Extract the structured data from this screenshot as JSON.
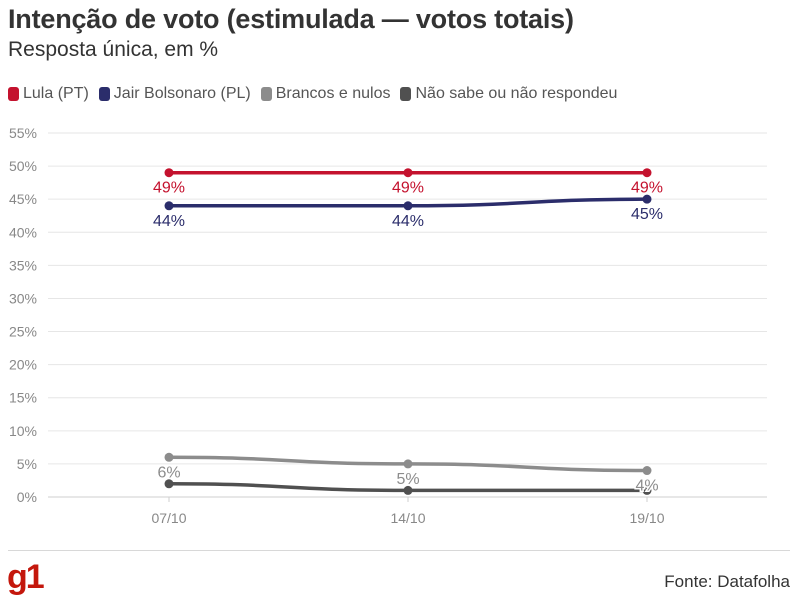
{
  "header": {
    "title": "Intenção de voto (estimulada — votos totais)",
    "subtitle": "Resposta única, em %"
  },
  "footer": {
    "logo": "g1",
    "source": "Fonte: Datafolha"
  },
  "chart_data": {
    "type": "line",
    "title": "Intenção de voto (estimulada — votos totais)",
    "subtitle": "Resposta única, em %",
    "x": [
      "07/10",
      "14/10",
      "19/10"
    ],
    "ylim": [
      0,
      55
    ],
    "yticks": [
      0,
      5,
      10,
      15,
      20,
      25,
      30,
      35,
      40,
      45,
      50,
      55
    ],
    "ytick_labels": [
      "0%",
      "5%",
      "10%",
      "15%",
      "20%",
      "25%",
      "30%",
      "35%",
      "40%",
      "45%",
      "50%",
      "55%"
    ],
    "grid": true,
    "legend_position": "top-left",
    "series": [
      {
        "name": "Lula (PT)",
        "color": "#c4122e",
        "values": [
          49,
          49,
          49
        ],
        "labels": [
          "49%",
          "49%",
          "49%"
        ],
        "label_pos": "below"
      },
      {
        "name": "Jair Bolsonaro (PL)",
        "color": "#2b2d6b",
        "values": [
          44,
          44,
          45
        ],
        "labels": [
          "44%",
          "44%",
          "45%"
        ],
        "label_pos": "below"
      },
      {
        "name": "Brancos e nulos",
        "color": "#8c8c8c",
        "values": [
          6,
          5,
          4
        ],
        "labels": [
          "6%",
          "5%",
          "4%"
        ],
        "label_pos": "below"
      },
      {
        "name": "Não sabe ou não respondeu",
        "color": "#505050",
        "values": [
          2,
          1,
          1
        ],
        "labels": [],
        "label_pos": "none"
      }
    ]
  }
}
